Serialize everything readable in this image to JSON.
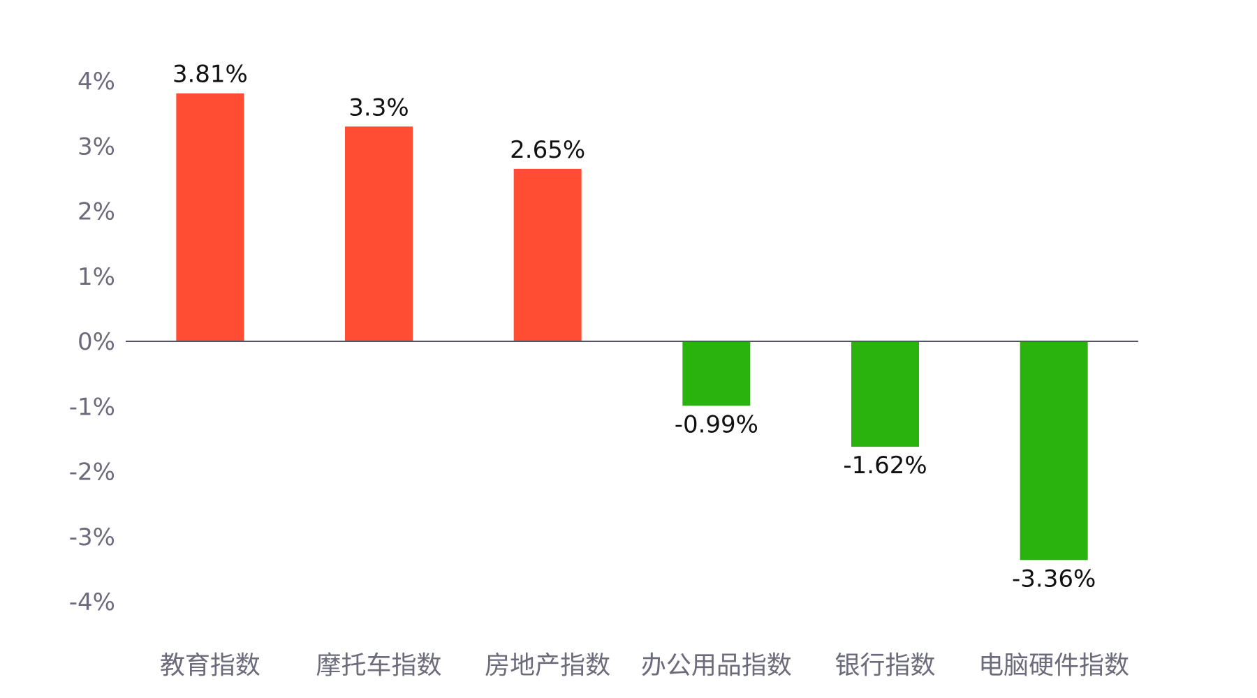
{
  "chart_data": {
    "type": "bar",
    "categories": [
      "教育指数",
      "摩托车指数",
      "房地产指数",
      "办公用品指数",
      "银行指数",
      "电脑硬件指数"
    ],
    "values": [
      3.81,
      3.3,
      2.65,
      -0.99,
      -1.62,
      -3.36
    ],
    "data_labels": [
      "3.81%",
      "3.3%",
      "2.65%",
      "-0.99%",
      "-1.62%",
      "-3.36%"
    ],
    "yticks": [
      "4%",
      "3%",
      "2%",
      "1%",
      "0%",
      "-1%",
      "-2%",
      "-3%",
      "-4%"
    ],
    "ylim": [
      -4,
      4
    ],
    "grid": false,
    "legend": "none",
    "colors": {
      "positive": "#ff4d33",
      "negative": "#2ab30f",
      "zero_line": "#555566",
      "axis_text": "#6b6b7b",
      "label_text": "#111111"
    }
  }
}
